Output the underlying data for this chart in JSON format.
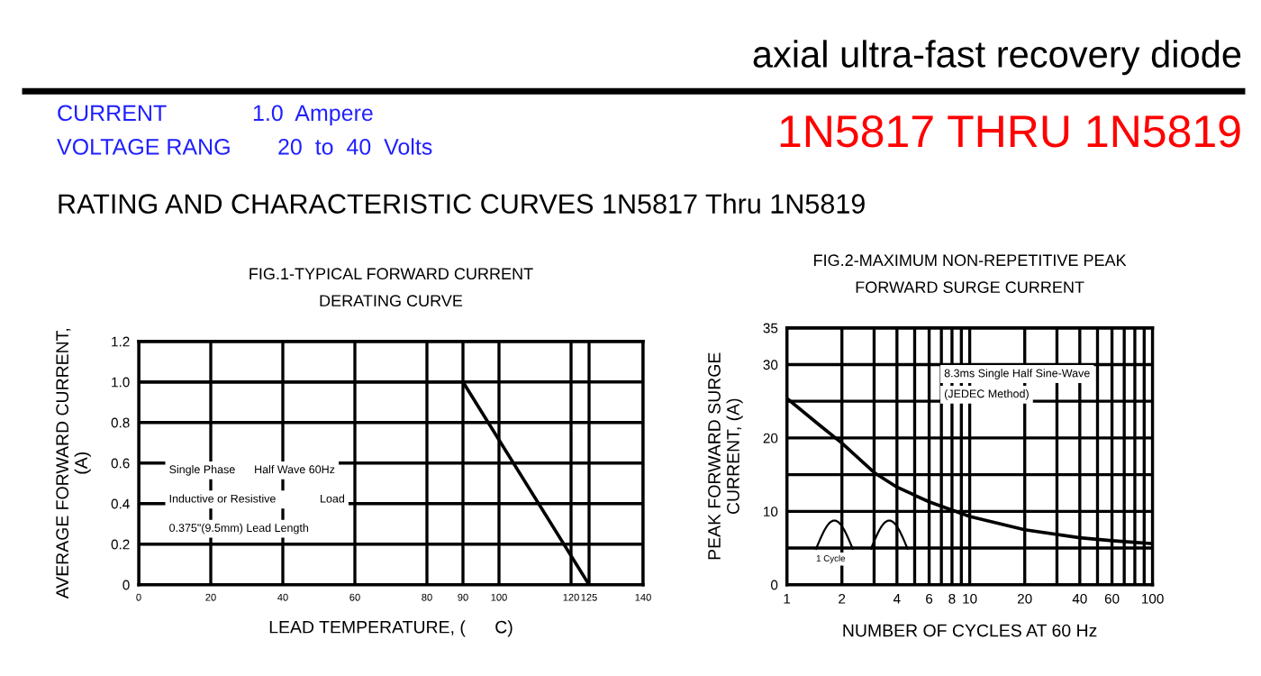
{
  "chart_data": [
    {
      "type": "other",
      "title": "axial ultra-fast recovery diode",
      "subtitle": "1N5817 THRU 1N5819",
      "annotations": [
        "CURRENT",
        "1.0  Ampere",
        "VOLTAGE RANG",
        "20  to  40  Volts",
        "RATING AND CHARACTERISTIC CURVES 1N5817 Thru 1N5819"
      ]
    },
    {
      "type": "line",
      "title": "FIG.1-TYPICAL FORWARD CURRENT\nDERATING CURVE",
      "xlabel": "LEAD TEMPERATURE, (      C)",
      "ylabel": "AVERAGE FORWARD CURRENT,\n(A)",
      "x": [
        0,
        90,
        125
      ],
      "series": [
        {
          "color": "#000000",
          "values": [
            1.0,
            1.0,
            0
          ]
        }
      ],
      "xlim": [
        0,
        140
      ],
      "xticks": [
        0,
        20,
        40,
        60,
        80,
        90,
        100,
        120,
        125,
        140
      ],
      "ylim": [
        0,
        1.2
      ],
      "yticks": [
        0,
        0.2,
        0.4,
        0.6,
        {
          "value": 0.8,
          "label": "0.8"
        },
        {
          "value": 1.0,
          "label": "1.0"
        },
        1.2
      ],
      "grid": true,
      "marker": "none",
      "line_style": "solid",
      "annotations": [
        "Single Phase      Half Wave 60Hz",
        "Inductive or Resistive              Load",
        "0.375\"(9.5mm) Lead Length"
      ]
    },
    {
      "type": "line",
      "title": "FIG.2-MAXIMUM NON-REPETITIVE PEAK\nFORWARD SURGE CURRENT",
      "xlabel": "NUMBER OF CYCLES AT 60 Hz",
      "ylabel": "PEAK FORWARD SURGE\nCURRENT, (A)",
      "x": [
        1,
        1.5,
        2,
        3,
        4,
        6,
        10,
        20,
        40,
        60,
        100
      ],
      "series": [
        {
          "color": "#000000",
          "values": [
            25.4,
            21.8,
            19.3,
            15.3,
            13.3,
            11.3,
            9.3,
            7.5,
            6.4,
            6.0,
            5.6
          ]
        }
      ],
      "log": "x",
      "xlim": [
        1,
        100
      ],
      "xticks": [
        1,
        2,
        {
          "value": 3,
          "label": null
        },
        4,
        {
          "value": 5,
          "label": null
        },
        6,
        {
          "value": 7,
          "label": null
        },
        8,
        {
          "value": 9,
          "label": null
        },
        10,
        20,
        {
          "value": 30,
          "label": null
        },
        40,
        {
          "value": 50,
          "label": null
        },
        60,
        {
          "value": 70,
          "label": null
        },
        {
          "value": 80,
          "label": null
        },
        {
          "value": 90,
          "label": null
        },
        100
      ],
      "ylim": [
        0,
        35
      ],
      "yticks": [
        0,
        {
          "value": 5,
          "label": null
        },
        10,
        {
          "value": 15,
          "label": null
        },
        20,
        {
          "value": 25,
          "label": null
        },
        30,
        35
      ],
      "grid": true,
      "marker": "none",
      "line_style": "solid",
      "annotations": [
        "8.3ms Single Half Sine-Wave",
        "(JEDEC Method)",
        "1 Cycle"
      ]
    }
  ]
}
